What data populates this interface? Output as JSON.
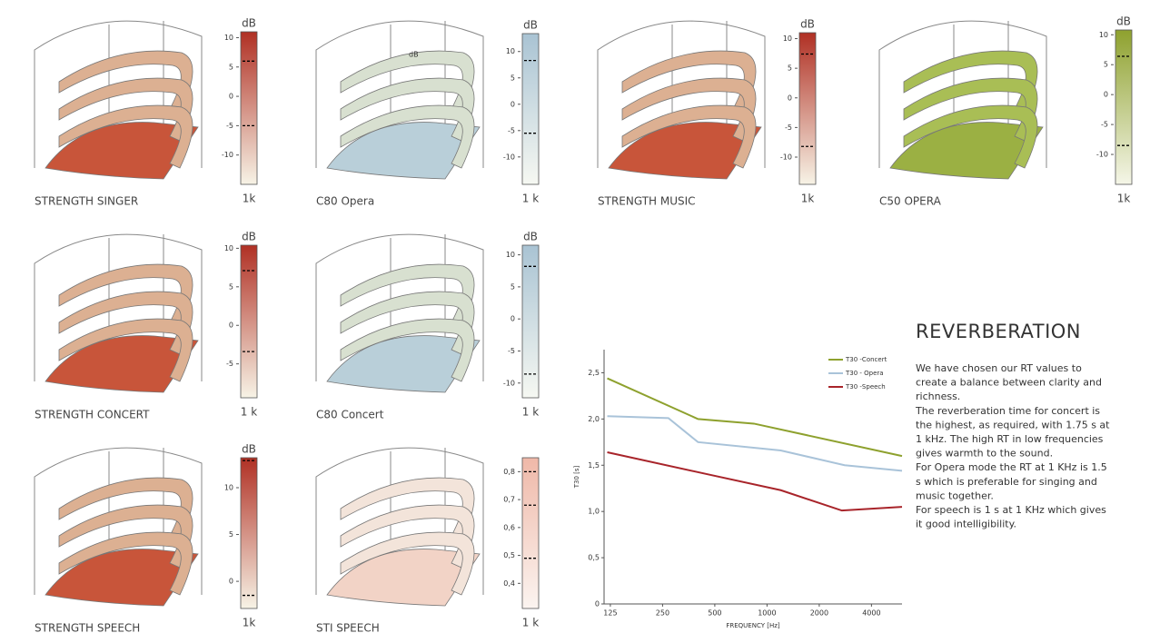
{
  "panels": [
    {
      "caption": "STRENGTH SINGER",
      "unit": "dB",
      "footer": "1k",
      "lim": [
        -15,
        11
      ],
      "ticks": [
        10,
        5,
        0,
        -5,
        -10
      ],
      "dashes": [
        6,
        -5
      ],
      "colors": [
        "#b03024",
        "#f7f3e6"
      ],
      "floor": "#c8553a",
      "balcony": "#dcb092"
    },
    {
      "caption": "C80 Opera",
      "unit": "dB",
      "footer": "1 k",
      "overlay_label": "dB",
      "lim": [
        -15.2,
        13.4
      ],
      "ticks": [
        10,
        5,
        0,
        -5,
        -10
      ],
      "dashes": [
        8.3,
        -5.5
      ],
      "colors": [
        "#a9c3d3",
        "#f6f8f2"
      ],
      "floor": "#b9cfd9",
      "balcony": "#d8e0d0"
    },
    {
      "caption": "STRENGTH MUSIC",
      "unit": "dB",
      "footer": "1k",
      "lim": [
        -14.6,
        11
      ],
      "ticks": [
        10,
        5,
        0,
        -5,
        -10
      ],
      "dashes": [
        7.4,
        -8.2
      ],
      "colors": [
        "#b03024",
        "#f7f3e6"
      ],
      "floor": "#c8553a",
      "balcony": "#dcb092"
    },
    {
      "caption": "C50 OPERA",
      "unit": "dB",
      "footer": "1k",
      "lim": [
        -15,
        10.8
      ],
      "ticks": [
        10,
        5,
        0,
        -5,
        -10
      ],
      "dashes": [
        6.4,
        -8.5
      ],
      "colors": [
        "#8ea12e",
        "#f5f6e8"
      ],
      "floor": "#9bb043",
      "balcony": "#a9be55"
    },
    {
      "caption": "STRENGTH  CONCERT",
      "unit": "dB",
      "footer": "1 k",
      "lim": [
        -9.4,
        10.4
      ],
      "ticks": [
        10,
        5,
        0,
        -5
      ],
      "dashes": [
        7.1,
        -3.4
      ],
      "colors": [
        "#b03024",
        "#f7f3e6"
      ],
      "floor": "#c8553a",
      "balcony": "#dcb092"
    },
    {
      "caption": "C80 Concert",
      "unit": "dB",
      "footer": "1 k",
      "lim": [
        -12.3,
        11.5
      ],
      "ticks": [
        10,
        5,
        0,
        -5,
        -10
      ],
      "dashes": [
        8.2,
        -8.6
      ],
      "colors": [
        "#a9c3d3",
        "#f6f8f2"
      ],
      "floor": "#b9cfd9",
      "balcony": "#d8e0d0"
    },
    {
      "caption": "STRENGTH  SPEECH",
      "unit": "dB",
      "footer": "1k",
      "lim": [
        -2.9,
        13.2
      ],
      "ticks": [
        10,
        5,
        0
      ],
      "dashes": [
        12.9,
        -1.5
      ],
      "colors": [
        "#b03024",
        "#f7f3e6"
      ],
      "floor": "#c8553a",
      "balcony": "#dcb092"
    },
    {
      "caption": "STI SPEECH",
      "footer": "1 k",
      "lim": [
        0.31,
        0.85
      ],
      "ticks": [
        {
          "value": 0.8,
          "label": "0,8"
        },
        {
          "value": 0.7,
          "label": "0,7"
        },
        {
          "value": 0.6,
          "label": "0,6"
        },
        {
          "value": 0.5,
          "label": "0,5"
        },
        {
          "value": 0.4,
          "label": "0,4"
        }
      ],
      "dashes": [
        0.8,
        0.68,
        0.49
      ],
      "colors": [
        "#efb8a8",
        "#fbf4f0"
      ],
      "floor": "#f2d3c6",
      "balcony": "#f3e4da"
    }
  ],
  "chart_data": {
    "type": "line",
    "x_label": "FREQUENCY [Hz]",
    "y_label": "T30 [s]",
    "log_x": true,
    "xlim": [
      115,
      6000
    ],
    "xticks": [
      125,
      250,
      500,
      1000,
      2000,
      4000
    ],
    "ylim": [
      0,
      2.75
    ],
    "yticks": [
      {
        "value": 2.5,
        "label": "2,5"
      },
      {
        "value": 2.0,
        "label": "2,0"
      },
      {
        "value": 1.5,
        "label": "1,5"
      },
      {
        "value": 1.0,
        "label": "1,0"
      },
      {
        "value": 0.5,
        "label": "0,5"
      },
      0
    ],
    "series": [
      {
        "name": "T30 -Concert",
        "color": "#8ea12e",
        "x": [
          120,
          400,
          840,
          6000
        ],
        "values": [
          2.44,
          2.0,
          1.95,
          1.6
        ]
      },
      {
        "name": "T30 - Opera",
        "color": "#a9c3d9",
        "x": [
          120,
          270,
          400,
          1200,
          2800,
          6000
        ],
        "values": [
          2.03,
          2.01,
          1.75,
          1.66,
          1.5,
          1.44
        ]
      },
      {
        "name": "T30 -Speech",
        "color": "#a8242a",
        "x": [
          120,
          460,
          1200,
          2700,
          6000
        ],
        "values": [
          1.64,
          1.4,
          1.23,
          1.01,
          1.05
        ]
      }
    ]
  },
  "reverberation": {
    "heading": "REVERBERATION",
    "lines": [
      "We have chosen our RT values to",
      "create a balance between clarity and",
      "richness.",
      "The reverberation time for concert is",
      "the highest, as required, with 1.75 s at",
      "1 kHz. The high RT in low frequencies",
      "gives warmth to the sound.",
      "For Opera mode the RT at 1 KHz is 1.5",
      "s which is preferable for singing and",
      "music together.",
      "For speech is 1 s at 1 KHz which gives",
      "it good intelligibility."
    ]
  }
}
